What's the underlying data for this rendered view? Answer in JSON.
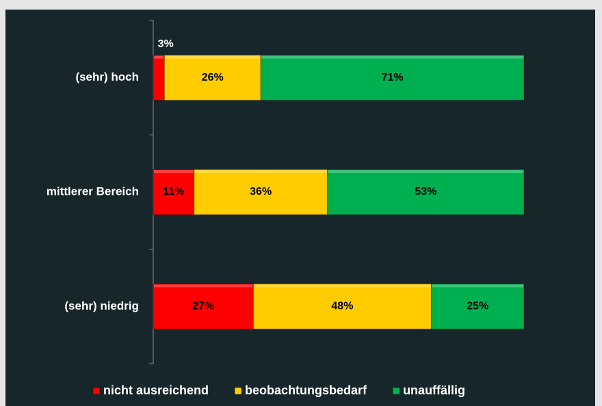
{
  "chart_data": {
    "type": "bar",
    "orientation": "horizontal",
    "stacked": true,
    "categories": [
      "(sehr) hoch",
      "mittlerer Bereich",
      "(sehr) niedrig"
    ],
    "series": [
      {
        "name": "nicht ausreichend",
        "color": "#ff0000",
        "values": [
          3,
          11,
          27
        ],
        "value_labels": [
          "3%",
          "11%",
          "27%"
        ]
      },
      {
        "name": "beobachtungsbedarf",
        "color": "#ffcc00",
        "values": [
          26,
          36,
          48
        ],
        "value_labels": [
          "26%",
          "36%",
          "48%"
        ]
      },
      {
        "name": "unauffällig",
        "color": "#00b050",
        "values": [
          71,
          53,
          25
        ],
        "value_labels": [
          "71%",
          "53%",
          "25%"
        ]
      }
    ],
    "legend": "bottom"
  }
}
